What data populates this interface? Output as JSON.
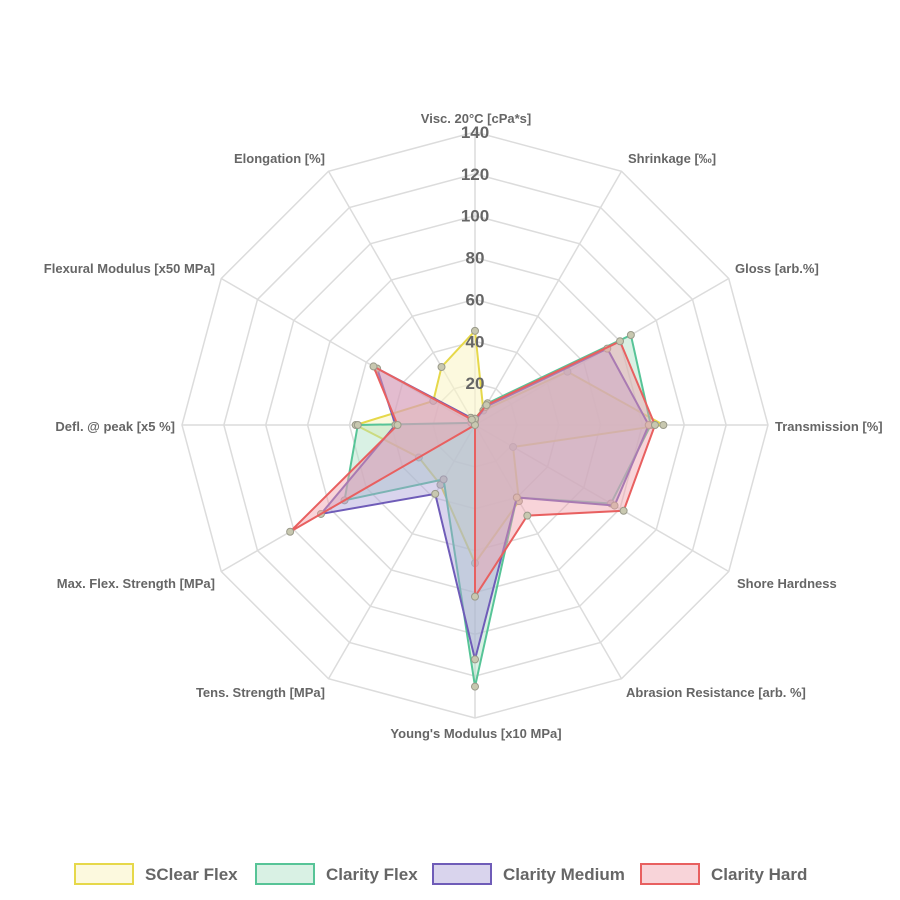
{
  "chart_data": {
    "type": "radar",
    "axes": [
      "Visc. 20°C [cPa*s]",
      "Shrinkage [‰]",
      "Gloss [arb.%]",
      "Transmission [%]",
      "Shore Hardness",
      "Abrasion Resistance [arb. %]",
      "Young's Modulus [x10 MPa]",
      "Tens. Strength [MPa]",
      "Max. Flex. Strength [MPa]",
      "Defl. @ peak [x5 %]",
      "Flexural Modulus [x50  MPa]",
      "Elongation [%]"
    ],
    "r_range": [
      0,
      140
    ],
    "ticks": [
      20,
      40,
      60,
      80,
      100,
      120,
      140
    ],
    "tick_labels": [
      "20",
      "40",
      "60",
      "80",
      "100",
      "120",
      "140"
    ],
    "legend_position": "bottom",
    "series": [
      {
        "name": "SClear Flex",
        "color": "#e6d84a",
        "fill": "rgba(250,245,200,0.6)",
        "values": [
          45,
          8,
          51,
          90,
          21,
          42,
          66,
          33,
          31,
          57,
          23,
          32
        ]
      },
      {
        "name": "Clarity Flex",
        "color": "#57c497",
        "fill": "rgba(170,225,195,0.45)",
        "values": [
          3,
          12,
          86,
          84,
          75,
          40,
          125,
          30,
          72,
          56,
          2,
          3
        ]
      },
      {
        "name": "Clarity Medium",
        "color": "#6f5cb8",
        "fill": "rgba(170,160,215,0.45)",
        "values": [
          2,
          10,
          73,
          83,
          77,
          40,
          112,
          38,
          85,
          38,
          54,
          4
        ]
      },
      {
        "name": "Clarity Hard",
        "color": "#e86060",
        "fill": "rgba(240,160,170,0.45)",
        "values": [
          3,
          11,
          80,
          86,
          82,
          50,
          82,
          0,
          102,
          37,
          56,
          3
        ]
      }
    ]
  }
}
